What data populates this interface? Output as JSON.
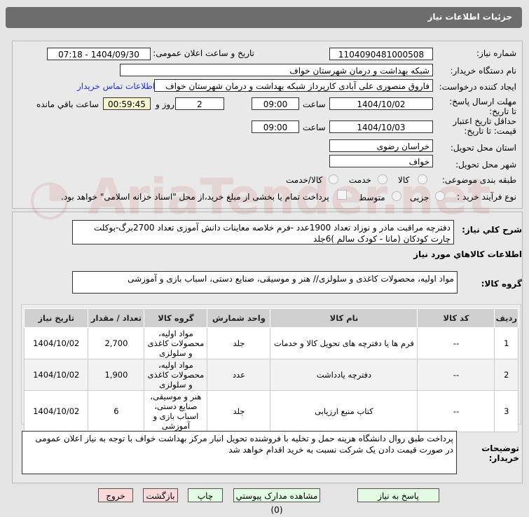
{
  "header": {
    "title": "جزئیات اطلاعات نیاز"
  },
  "form": {
    "need_number_label": "شماره نیاز:",
    "need_number": "1104090481000508",
    "announce_label": "تاریخ و ساعت اعلان عمومی:",
    "announce_value": "1404/09/30 - 07:18",
    "buyer_org_label": "نام دستگاه خریدار:",
    "buyer_org": "شبکه بهداشت و درمان شهرستان خواف",
    "creator_label": "ایجاد کننده درخواست:",
    "creator": "فاروق منصوری علی آبادی کارپرداز شبکه بهداشت و درمان شهرستان خواف",
    "contact_link": "اطلاعات تماس خریدار",
    "deadline_label": "مهلت ارسال پاسخ: تا تاریخ:",
    "deadline_date": "1404/10/02",
    "time_label": "ساعت",
    "deadline_time": "09:00",
    "days": "2",
    "days_label": "روز و",
    "remaining": "00:59:45",
    "remaining_label": "ساعت باقي مانده",
    "validity_label": "حداقل تاریخ اعتبار قیمت: تا تاریخ:",
    "validity_date": "1404/10/03",
    "validity_time": "09:00",
    "province_label": "استان محل تحویل:",
    "province": "خراسان رضوی",
    "city_label": "شهر محل تحویل:",
    "city": "خواف",
    "category_label": "طبقه بندی موضوعی:",
    "category_options": [
      "کالا",
      "خدمت",
      "کالا/خدمت"
    ],
    "process_label": "نوع فرآیند خرید :",
    "process_options": [
      "جزیی",
      "متوسط"
    ],
    "payment_note": "پرداخت تمام یا بخشی از مبلغ خرید،از محل \"اسناد خزانه اسلامی\" خواهد بود."
  },
  "details": {
    "summary_label": "شرح کلي نیاز:",
    "summary": "دفترچه مراقبت مادر و نوزاد  تعداد 1900عدد -فرم خلاصه معاینات دانش آموزی تعداد 2700برگ-بوکلت چارت کودکان (مانا - کودک سالم )6جلد",
    "goods_info_title": "اطلاعات کالاهاي مورد نیاز",
    "group_label": "گروه کالا:",
    "group": "مواد اولیه، محصولات کاغذی و سلولزی// هنر و موسیقی، صنایع دستی، اسباب بازی و آموزشی",
    "table": {
      "headers": [
        "ردیف",
        "کد کالا",
        "نام کالا",
        "واحد شمارش",
        "گروه کالا",
        "تعداد / مقدار",
        "تاریخ نیاز"
      ],
      "rows": [
        [
          "1",
          "--",
          "فرم ها یا دفترچه های تحویل کالا و خدمات",
          "جلد",
          "مواد اولیه، محصولات کاغذی و سلولزی",
          "2,700",
          "1404/10/02"
        ],
        [
          "2",
          "--",
          "دفترچه یادداشت",
          "عدد",
          "مواد اولیه، محصولات کاغذی و سلولزی",
          "1,900",
          "1404/10/02"
        ],
        [
          "3",
          "--",
          "کتاب منبع ارزیابی",
          "جلد",
          "هنر و موسیقی، صنایع دستی، اسباب بازی و آموزشی",
          "6",
          "1404/10/02"
        ]
      ]
    },
    "buyer_notes_label": "توضیحات خریدار:",
    "buyer_notes": "پرداخت طبق روال دانشگاه هزینه حمل و تخلیه با فروشنده تحویل انبار مرکز بهداشت خواف با توجه به نیاز اعلان عمومی در صورت قیمت دادن یک شرکت نسبت به خرید اقدام خواهد شد"
  },
  "buttons": {
    "reply": "پاسخ به نیاز",
    "attachments": "مشاهده مدارک پیوستي (0)",
    "print": "چاپ",
    "back": "بازگشت",
    "exit": "خروج"
  },
  "watermark": "AriaTender.net"
}
